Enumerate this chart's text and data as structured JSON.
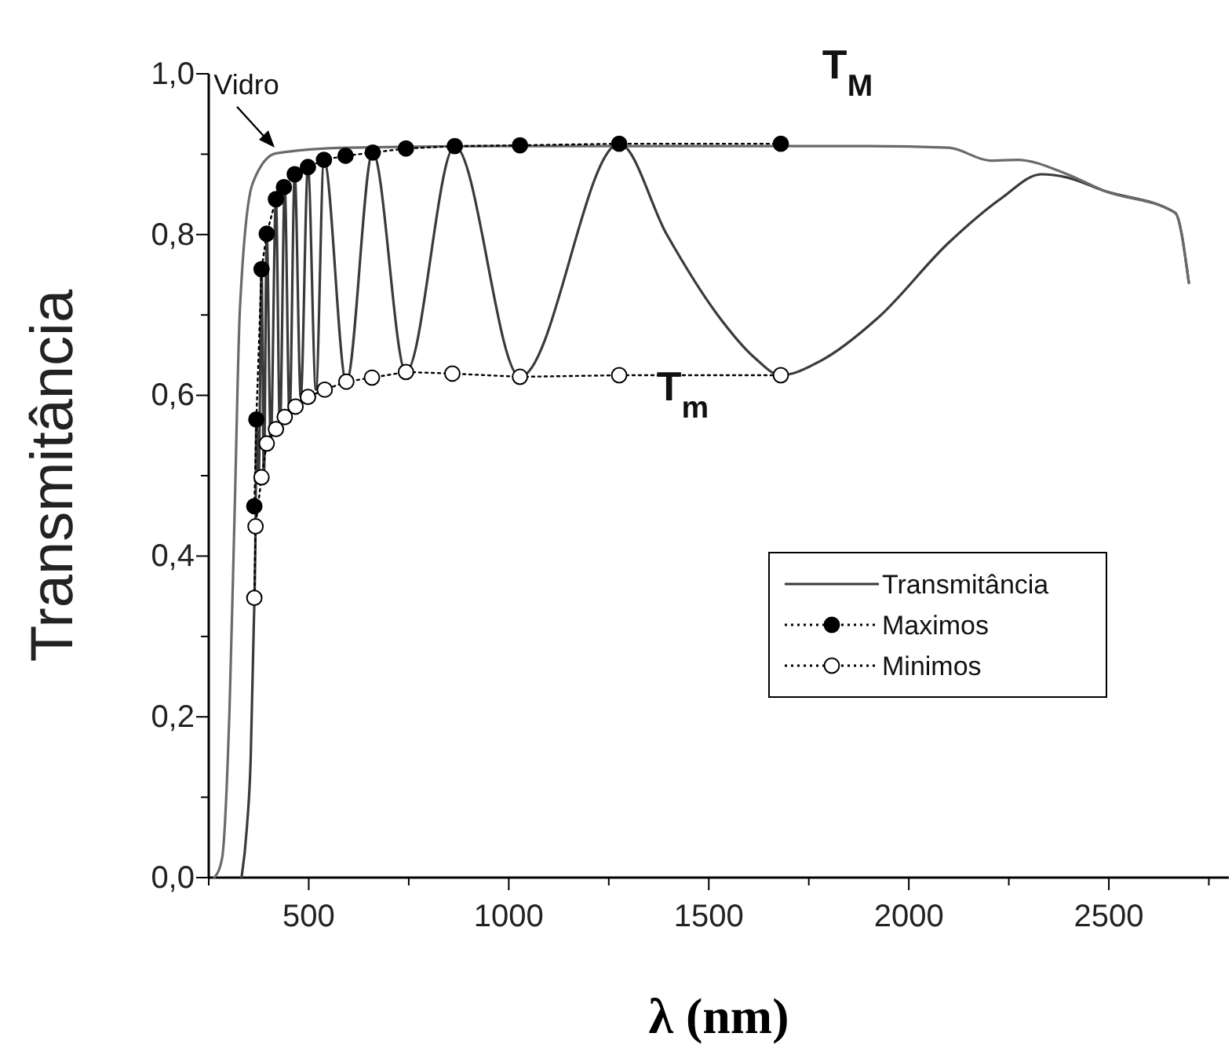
{
  "chart_data": {
    "type": "line",
    "xlabel": "λ (nm)",
    "ylabel": "Transmitância",
    "xlim": [
      250,
      2800
    ],
    "ylim": [
      0,
      1
    ],
    "xticks": [
      {
        "value": 250,
        "label": null
      },
      500,
      {
        "value": 750,
        "label": null
      },
      1000,
      {
        "value": 1250,
        "label": null
      },
      1500,
      {
        "value": 1750,
        "label": null
      },
      2000,
      {
        "value": 2250,
        "label": null
      },
      2500,
      {
        "value": 2750,
        "label": null
      }
    ],
    "yticks": [
      {
        "value": 0,
        "label": "0,0"
      },
      {
        "value": 0.1,
        "label": null
      },
      {
        "value": 0.2,
        "label": "0,2"
      },
      {
        "value": 0.3,
        "label": null
      },
      {
        "value": 0.4,
        "label": "0,4"
      },
      {
        "value": 0.5,
        "label": null
      },
      {
        "value": 0.6,
        "label": "0,6"
      },
      {
        "value": 0.7,
        "label": null
      },
      {
        "value": 0.8,
        "label": "0,8"
      },
      {
        "value": 0.9,
        "label": null
      },
      {
        "value": 1,
        "label": "1,0"
      }
    ],
    "grid": false,
    "legend": "bottom right",
    "series": [
      {
        "name": "Transmitância",
        "marker": "none",
        "line_style": "solid",
        "color": "#3a3a3a",
        "x": [
          332,
          345,
          355,
          362,
          367,
          369,
          375,
          382,
          388,
          395,
          405,
          418,
          428,
          440,
          452,
          465,
          480,
          498,
          518,
          538,
          594,
          660,
          743,
          865,
          1028,
          1276,
          1395,
          1522,
          1614,
          1680,
          1780,
          1922,
          2100,
          2231,
          2331,
          2396,
          2485,
          2666,
          2700
        ],
        "values": [
          0,
          0.06,
          0.15,
          0.3,
          0.437,
          0.57,
          0.5,
          0.757,
          0.498,
          0.801,
          0.54,
          0.844,
          0.558,
          0.859,
          0.573,
          0.875,
          0.598,
          0.884,
          0.607,
          0.893,
          0.617,
          0.902,
          0.629,
          0.91,
          0.623,
          0.913,
          0.8,
          0.7,
          0.647,
          0.625,
          0.643,
          0.696,
          0.79,
          0.845,
          0.875,
          0.871,
          0.855,
          0.827,
          0.74
        ]
      },
      {
        "marker": "none",
        "line_style": "solid",
        "color": "#6a6a6a",
        "x": [
          264,
          283,
          302,
          315,
          328,
          360,
          418,
          600,
          1000,
          1500,
          1900,
          2100,
          2204,
          2270,
          2396,
          2485,
          2666,
          2700
        ],
        "values": [
          0,
          0.023,
          0.21,
          0.46,
          0.708,
          0.864,
          0.901,
          0.908,
          0.91,
          0.91,
          0.91,
          0.908,
          0.892,
          0.893,
          0.875,
          0.855,
          0.827,
          0.74
        ]
      },
      {
        "name": "Maximos",
        "marker": "circle",
        "line_style": "dotted",
        "color": "#000000",
        "x": [
          364,
          369,
          382,
          395,
          418,
          438,
          465,
          498,
          538,
          592,
          660,
          743,
          865,
          1028,
          1276,
          1680
        ],
        "values": [
          0.462,
          0.57,
          0.757,
          0.801,
          0.844,
          0.859,
          0.875,
          0.884,
          0.893,
          0.898,
          0.902,
          0.907,
          0.91,
          0.911,
          0.913,
          0.913
        ]
      },
      {
        "name": "Minimos",
        "marker": "circle",
        "line_style": "dotted",
        "color": "#ffffff",
        "x": [
          364,
          367,
          382,
          395,
          418,
          440,
          467,
          498,
          540,
          594,
          658,
          743,
          859,
          1028,
          1276,
          1680
        ],
        "values": [
          0.348,
          0.437,
          0.498,
          0.54,
          0.558,
          0.573,
          0.586,
          0.598,
          0.607,
          0.617,
          0.622,
          0.629,
          0.627,
          0.623,
          0.625,
          0.625
        ]
      }
    ],
    "annotations": [
      "Vidro",
      "T$_{M}$",
      "T$_{m}$"
    ]
  }
}
